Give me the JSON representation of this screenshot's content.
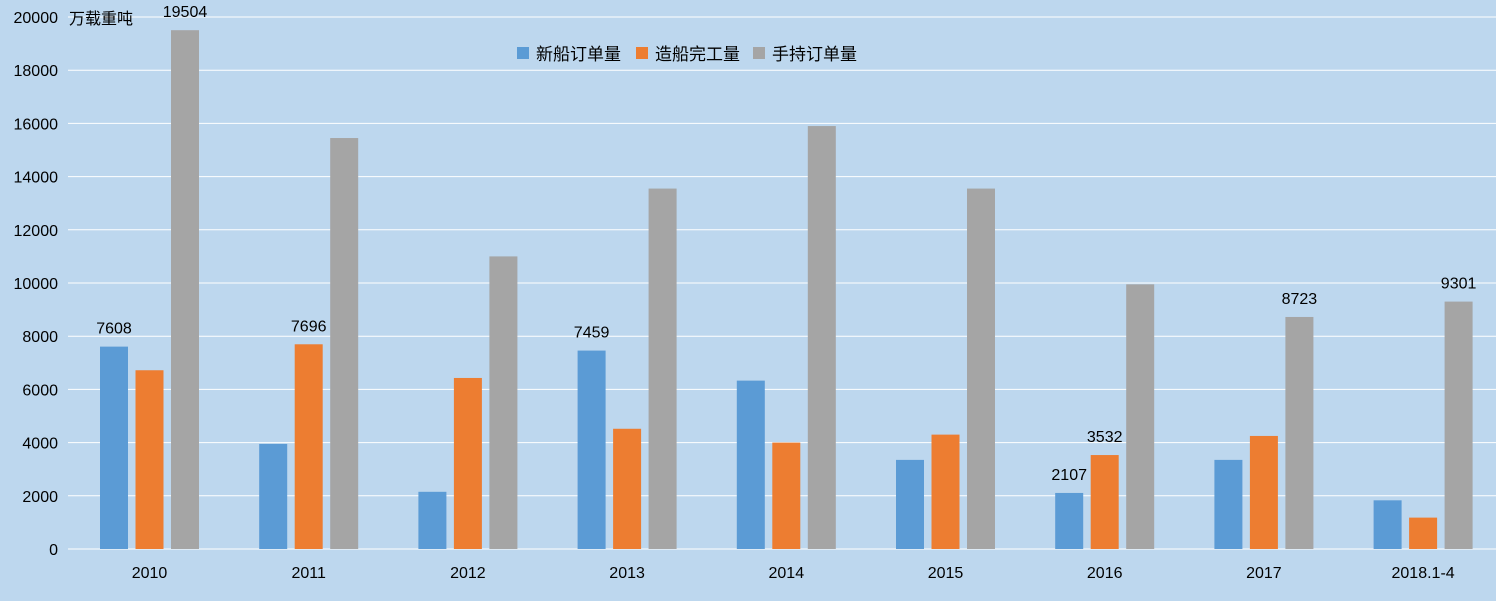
{
  "chart_data": {
    "type": "bar",
    "unit_label": "万载重吨",
    "categories": [
      "2010",
      "2011",
      "2012",
      "2013",
      "2014",
      "2015",
      "2016",
      "2017",
      "2018.1-4"
    ],
    "series": [
      {
        "name": "新船订单量",
        "color": "#5b9bd5",
        "values": [
          7608,
          3950,
          2150,
          7459,
          6330,
          3350,
          2107,
          3350,
          1830
        ],
        "labels": [
          "7608",
          "",
          "",
          "7459",
          "",
          "",
          "2107",
          "",
          ""
        ]
      },
      {
        "name": "造船完工量",
        "color": "#ed7d31",
        "values": [
          6720,
          7696,
          6430,
          4520,
          4000,
          4300,
          3532,
          4250,
          1180
        ],
        "labels": [
          "",
          "7696",
          "",
          "",
          "",
          "",
          "3532",
          "",
          ""
        ]
      },
      {
        "name": "手持订单量",
        "color": "#a5a5a5",
        "values": [
          19504,
          15450,
          11000,
          13550,
          15900,
          13550,
          9950,
          8723,
          9301
        ],
        "labels": [
          "19504",
          "",
          "",
          "",
          "",
          "",
          "",
          "8723",
          "9301"
        ]
      }
    ],
    "ylim": [
      0,
      20000
    ],
    "yticks": [
      0,
      2000,
      4000,
      6000,
      8000,
      10000,
      12000,
      14000,
      16000,
      18000,
      20000
    ],
    "ytick_labels": [
      "0",
      "2000",
      "4000",
      "6000",
      "8000",
      "10000",
      "12000",
      "14000",
      "16000",
      "18000",
      "20000"
    ],
    "grid": true,
    "legend_position": "top-center",
    "background_color": "#bdd7ee",
    "gridline_color": "#ffffff"
  }
}
